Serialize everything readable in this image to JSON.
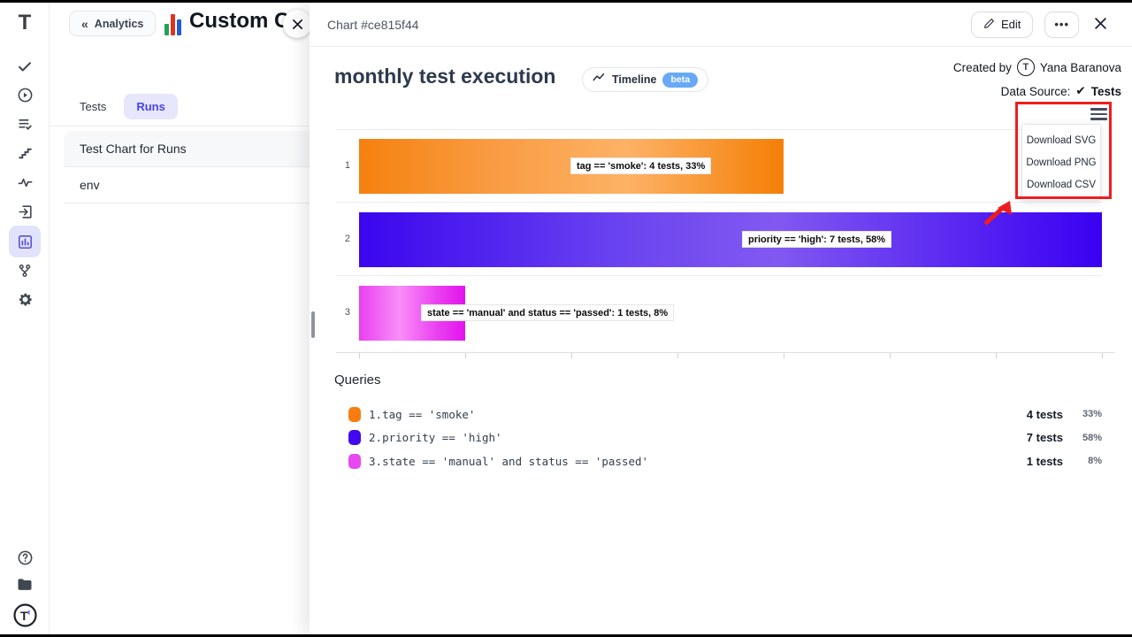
{
  "sidebar": {
    "logo_text": "T",
    "icons": [
      "check",
      "play-circle",
      "list-check",
      "steps",
      "activity",
      "import-box",
      "bar-chart",
      "git-branch",
      "gear"
    ],
    "selected_icon": "bar-chart",
    "bottom_icons": [
      "help-circle",
      "folder",
      "profile-logo"
    ]
  },
  "drawer": {
    "back_chevron": "«",
    "back_label": "Analytics",
    "title": "Custom Ch",
    "tabs": [
      {
        "label": "Tests"
      },
      {
        "label": "Runs"
      }
    ],
    "active_tab": "Runs",
    "items": [
      {
        "label": "Test Chart for Runs"
      },
      {
        "label": "env"
      }
    ]
  },
  "main": {
    "header": {
      "title": "Chart #ce815f44",
      "edit_label": "Edit",
      "more_label": "•••"
    },
    "chart_header": {
      "title": "monthly test execution",
      "timeline_label": "Timeline",
      "beta_label": "beta",
      "created_by_label": "Created by",
      "creator_avatar_text": "T",
      "creator": "Yana Baranova",
      "datasource_label": "Data Source:",
      "datasource_check": "✔",
      "datasource_value": "Tests"
    },
    "download_menu": {
      "items": [
        "Download SVG",
        "Download PNG",
        "Download CSV"
      ]
    },
    "queries": {
      "heading": "Queries",
      "rows": [
        {
          "index_label": "1.",
          "query": "tag == 'smoke'",
          "tests": "4 tests",
          "pct": "33%",
          "color": "#f97c12"
        },
        {
          "index_label": "2.",
          "query": "priority == 'high'",
          "tests": "7 tests",
          "pct": "58%",
          "color": "#4209ef"
        },
        {
          "index_label": "3.",
          "query": "state == 'manual' and status == 'passed'",
          "tests": "1 tests",
          "pct": "8%",
          "color": "#e748f1"
        }
      ]
    }
  },
  "chart_data": {
    "type": "bar",
    "orientation": "horizontal",
    "title": "monthly test execution",
    "categories": [
      "1",
      "2",
      "3"
    ],
    "values": [
      4,
      7,
      1
    ],
    "percentages": [
      33,
      58,
      8
    ],
    "bar_labels": [
      "tag == 'smoke': 4 tests, 33%",
      "priority == 'high': 7 tests, 58%",
      "state == 'manual' and status == 'passed': 1 tests, 8%"
    ],
    "series_queries": [
      "tag == 'smoke'",
      "priority == 'high'",
      "state == 'manual' and status == 'passed'"
    ],
    "colors": [
      "#f5810e",
      "#3a06ee",
      "#e940f0"
    ],
    "xlim": [
      0,
      7
    ],
    "grid": true,
    "legend_position": "bottom"
  },
  "accents": {
    "annotation_red": "#ee1d1d",
    "beta_blue": "#67a9f7",
    "selected_purple": "#e0e3fb"
  }
}
